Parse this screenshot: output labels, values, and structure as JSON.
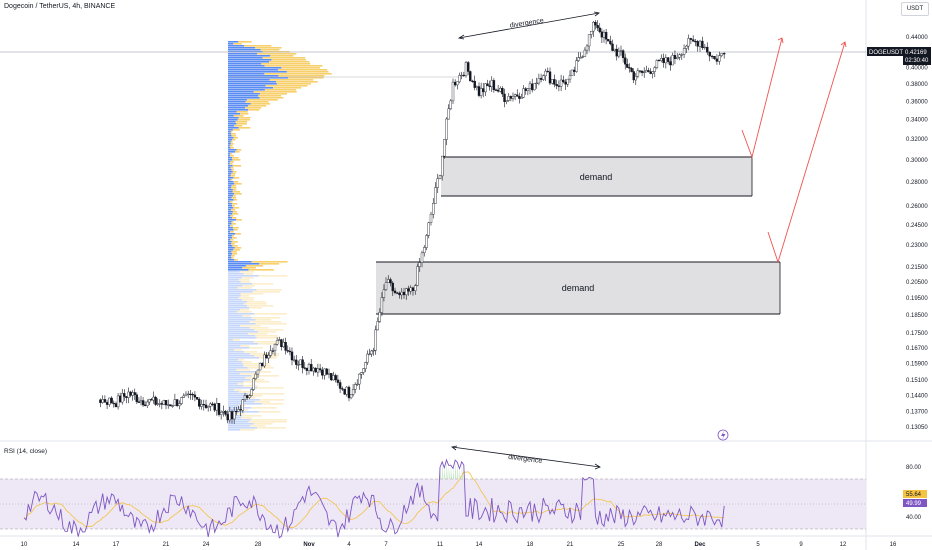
{
  "header": {
    "title": "Dogecoin / TetherUS, 4h, BINANCE",
    "currency": "USDT"
  },
  "price_tag": {
    "symbol": "DOGEUSDT",
    "price": "0.42169",
    "countdown": "02:30:40"
  },
  "rsi_panel": {
    "title": "RSI (14, close)",
    "value_a": "55.64",
    "value_b": "49.99",
    "levels": [
      "80.00",
      "60.00",
      "40.00"
    ]
  },
  "colors": {
    "up": "#ffffff",
    "down": "#131722",
    "profile_blue": "#5b8cf2",
    "profile_yellow": "#f7cf6b",
    "zone_fill": "#e0e0e2",
    "projection": "#ef5350",
    "rsi_line": "#7e57c2",
    "rsi_ma": "#f5c342",
    "rsi_band": "#ede7f6"
  },
  "annotations": {
    "zone_upper_label": "demand",
    "zone_lower_label": "demand",
    "divergence_price": "divergence",
    "divergence_rsi": "divergence",
    "lightning_icon": "lightning-icon"
  },
  "chart_data": [
    {
      "type": "candlestick",
      "title": "Dogecoin / TetherUS, 4h, BINANCE",
      "y_scale": "log",
      "ylim": [
        0.128,
        0.455
      ],
      "y_ticks": [
        "0.44000",
        "0.42000",
        "0.40000",
        "0.38000",
        "0.36000",
        "0.34000",
        "0.32000",
        "0.30000",
        "0.28000",
        "0.26000",
        "0.24500",
        "0.23000",
        "0.21500",
        "0.20500",
        "0.19500",
        "0.18500",
        "0.17500",
        "0.16700",
        "0.15900",
        "0.15100",
        "0.14400",
        "0.13700",
        "0.13050"
      ],
      "x_ticks": [
        "10",
        "14",
        "17",
        "21",
        "24",
        "28",
        "Nov",
        "4",
        "7",
        "11",
        "14",
        "18",
        "21",
        "25",
        "28",
        "Dec",
        "5",
        "9",
        "12",
        "16"
      ],
      "last_price": 0.42169,
      "close_path": [
        [
          "Oct 10",
          0.125
        ],
        [
          "Oct 11",
          0.128
        ],
        [
          "Oct 13",
          0.134
        ],
        [
          "Oct 14",
          0.14
        ],
        [
          "Oct 15",
          0.143
        ],
        [
          "Oct 17",
          0.141
        ],
        [
          "Oct 18",
          0.145
        ],
        [
          "Oct 19",
          0.142
        ],
        [
          "Oct 21",
          0.14
        ],
        [
          "Oct 23",
          0.143
        ],
        [
          "Oct 24",
          0.14
        ],
        [
          "Oct 25",
          0.138
        ],
        [
          "Oct 26",
          0.134
        ],
        [
          "Oct 27",
          0.142
        ],
        [
          "Oct 28",
          0.155
        ],
        [
          "Oct 29",
          0.168
        ],
        [
          "Oct 30",
          0.17
        ],
        [
          "Oct 31",
          0.16
        ],
        [
          "Nov 2",
          0.156
        ],
        [
          "Nov 3",
          0.15
        ],
        [
          "Nov 4",
          0.145
        ],
        [
          "Nov 5",
          0.155
        ],
        [
          "Nov 6",
          0.168
        ],
        [
          "Nov 7",
          0.205
        ],
        [
          "Nov 8",
          0.195
        ],
        [
          "Nov 9",
          0.2
        ],
        [
          "Nov 10",
          0.235
        ],
        [
          "Nov 11",
          0.29
        ],
        [
          "Nov 12",
          0.38
        ],
        [
          "Nov 13",
          0.4
        ],
        [
          "Nov 14",
          0.37
        ],
        [
          "Nov 15",
          0.38
        ],
        [
          "Nov 16",
          0.365
        ],
        [
          "Nov 17",
          0.368
        ],
        [
          "Nov 18",
          0.375
        ],
        [
          "Nov 19",
          0.395
        ],
        [
          "Nov 20",
          0.38
        ],
        [
          "Nov 21",
          0.385
        ],
        [
          "Nov 22",
          0.42
        ],
        [
          "Nov 23",
          0.46
        ],
        [
          "Nov 24",
          0.43
        ],
        [
          "Nov 25",
          0.415
        ],
        [
          "Nov 26",
          0.39
        ],
        [
          "Nov 27",
          0.395
        ],
        [
          "Nov 28",
          0.405
        ],
        [
          "Nov 29",
          0.41
        ],
        [
          "Nov 30",
          0.43
        ],
        [
          "Dec 1",
          0.435
        ],
        [
          "Dec 2",
          0.41
        ],
        [
          "Dec 3",
          0.42169
        ]
      ]
    },
    {
      "type": "line",
      "title": "RSI (14, close)",
      "ylim": [
        30,
        100
      ],
      "y_ticks": [
        80,
        60,
        40
      ],
      "band": [
        40,
        80
      ],
      "last_values": [
        55.64,
        49.99
      ]
    }
  ]
}
